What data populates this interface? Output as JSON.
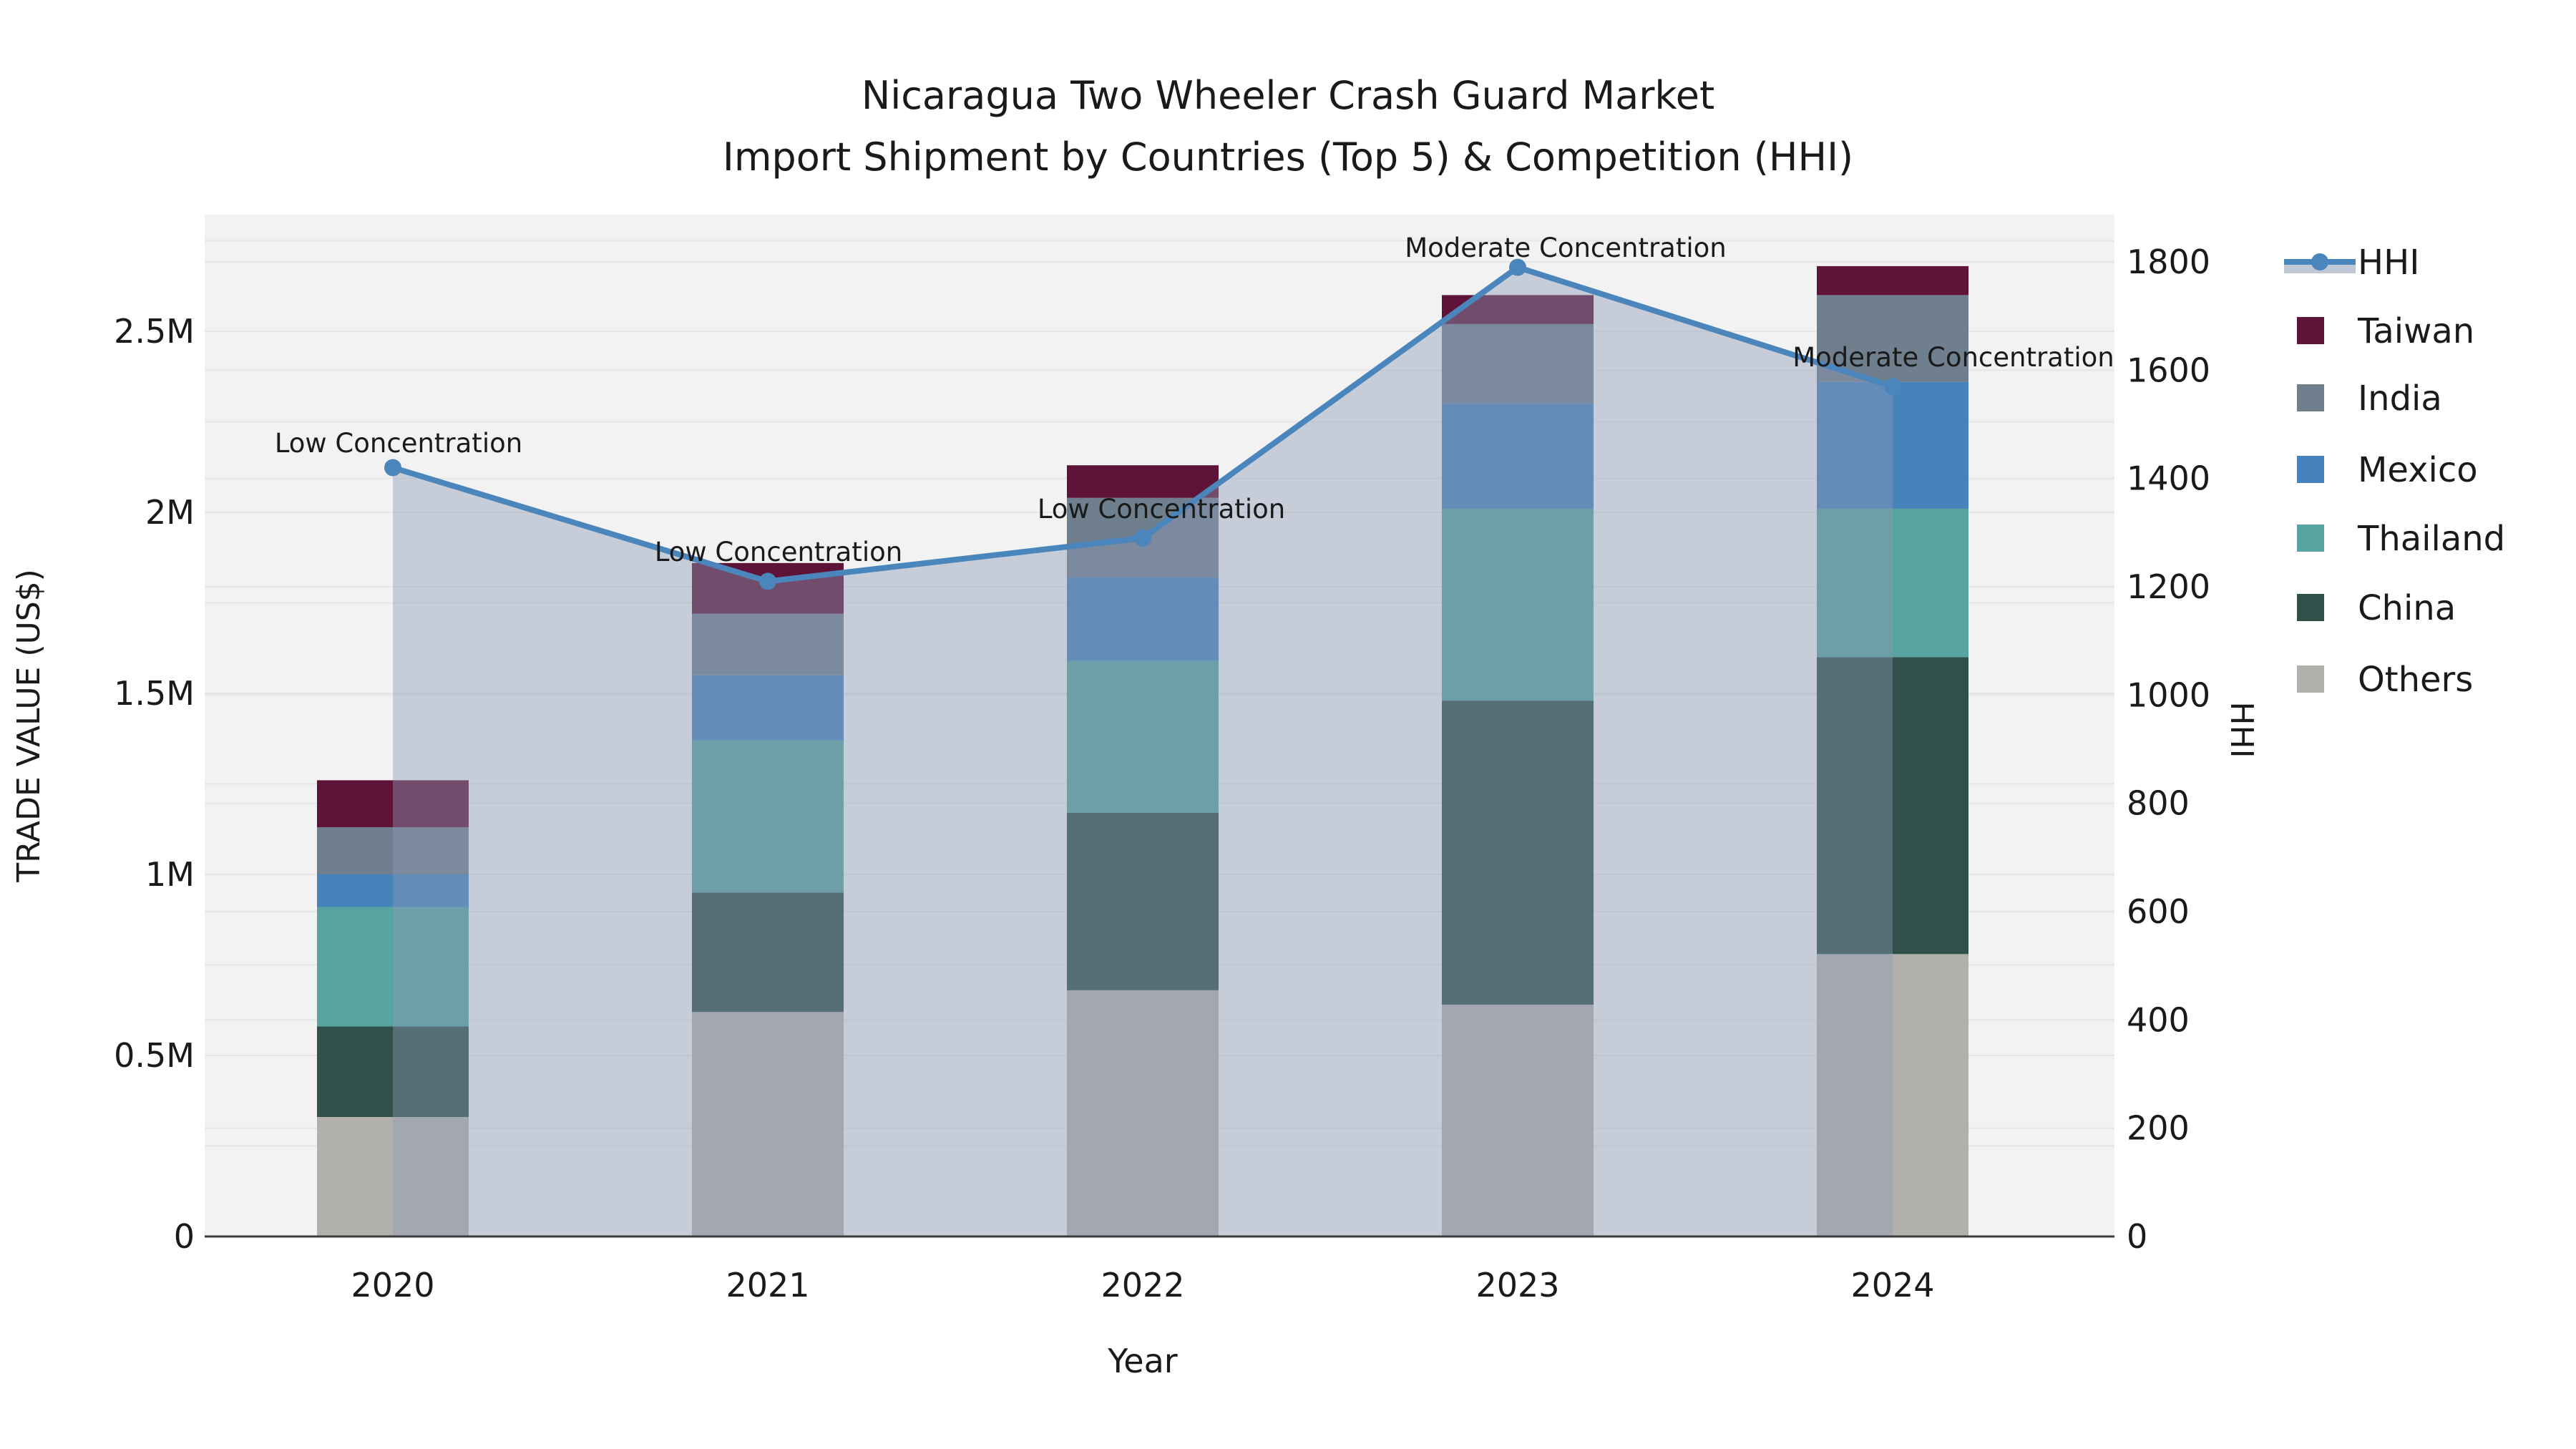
{
  "title": {
    "line1": "Nicaragua Two Wheeler Crash Guard Market",
    "line2": "Import Shipment by Countries (Top 5) & Competition (HHI)"
  },
  "axes": {
    "left": {
      "label": "TRADE VALUE (US$)",
      "ticks": [
        "0",
        "0.5M",
        "1M",
        "1.5M",
        "2M",
        "2.5M"
      ],
      "tick_values_M": [
        0,
        0.5,
        1,
        1.5,
        2,
        2.5
      ]
    },
    "right": {
      "label": "HHI",
      "ticks": [
        "0",
        "200",
        "400",
        "600",
        "800",
        "1000",
        "1200",
        "1400",
        "1600",
        "1800"
      ],
      "tick_values": [
        0,
        200,
        400,
        600,
        800,
        1000,
        1200,
        1400,
        1600,
        1800
      ]
    },
    "x": {
      "label": "Year",
      "ticks": [
        "2020",
        "2021",
        "2022",
        "2023",
        "2024"
      ]
    }
  },
  "legend": {
    "items": [
      {
        "label": "HHI",
        "swatch": "line-marker-area"
      },
      {
        "label": "Taiwan",
        "swatch": "square",
        "color_key": "taiwan"
      },
      {
        "label": "India",
        "swatch": "square",
        "color_key": "india"
      },
      {
        "label": "Mexico",
        "swatch": "square",
        "color_key": "mexico"
      },
      {
        "label": "Thailand",
        "swatch": "square",
        "color_key": "thailand"
      },
      {
        "label": "China",
        "swatch": "square",
        "color_key": "china"
      },
      {
        "label": "Others",
        "swatch": "square",
        "color_key": "others"
      }
    ]
  },
  "colors": {
    "taiwan": "#5e1438",
    "india": "#6f7f8d",
    "mexico": "#4682bc",
    "thailand": "#56a3a0",
    "china": "#305049",
    "others": "#b2b0ad",
    "hhi_line": "#4a86bb",
    "hhi_area": "#8c9bb4",
    "plot_bg": "#f2f2f2",
    "grid": "#e6e6e6",
    "axis_line": "#3d3d3d"
  },
  "chart_data": {
    "type": "combo (stacked bar + line with area fill)",
    "x": [
      2020,
      2021,
      2022,
      2023,
      2024
    ],
    "xlabel": "Year",
    "ylabel_left": "TRADE VALUE (US$)",
    "ylabel_right": "HHI",
    "bar_value_unit": "million US$",
    "stack_order_bottom_to_top": [
      "Others",
      "China",
      "Thailand",
      "Mexico",
      "India",
      "Taiwan"
    ],
    "series": [
      {
        "name": "Others",
        "type": "bar",
        "axis": "left",
        "values_M": [
          0.33,
          0.62,
          0.68,
          0.64,
          0.78
        ]
      },
      {
        "name": "China",
        "type": "bar",
        "axis": "left",
        "values_M": [
          0.25,
          0.33,
          0.49,
          0.84,
          0.82
        ]
      },
      {
        "name": "Thailand",
        "type": "bar",
        "axis": "left",
        "values_M": [
          0.33,
          0.42,
          0.42,
          0.53,
          0.41
        ]
      },
      {
        "name": "Mexico",
        "type": "bar",
        "axis": "left",
        "values_M": [
          0.09,
          0.18,
          0.23,
          0.29,
          0.35
        ]
      },
      {
        "name": "India",
        "type": "bar",
        "axis": "left",
        "values_M": [
          0.13,
          0.17,
          0.22,
          0.22,
          0.24
        ]
      },
      {
        "name": "Taiwan",
        "type": "bar",
        "axis": "left",
        "values_M": [
          0.13,
          0.14,
          0.09,
          0.08,
          0.08
        ]
      },
      {
        "name": "HHI",
        "type": "line+area",
        "axis": "right",
        "values": [
          1420,
          1210,
          1290,
          1790,
          1570
        ]
      }
    ],
    "bar_totals_M": [
      1.26,
      1.86,
      2.13,
      2.6,
      2.68
    ],
    "annotations": [
      {
        "year": 2020,
        "text": "Low Concentration"
      },
      {
        "year": 2021,
        "text": "Low Concentration"
      },
      {
        "year": 2022,
        "text": "Low Concentration"
      },
      {
        "year": 2023,
        "text": "Moderate Concentration"
      },
      {
        "year": 2024,
        "text": "Moderate Concentration"
      }
    ],
    "left_axis_ticks": [
      "0",
      "0.5M",
      "1M",
      "1.5M",
      "2M",
      "2.5M"
    ],
    "right_axis_ticks": [
      0,
      200,
      400,
      600,
      800,
      1000,
      1200,
      1400,
      1600,
      1800
    ],
    "grid": true,
    "legend_position": "upper right, outside plot"
  }
}
